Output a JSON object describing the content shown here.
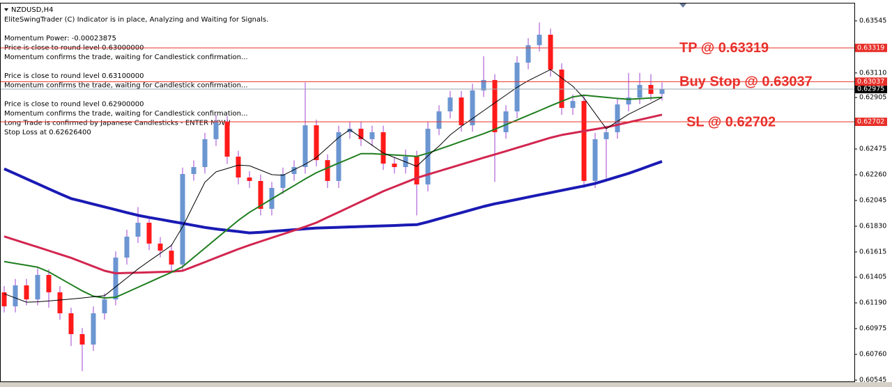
{
  "chart_data": {
    "type": "candlestick",
    "symbol": "NZDUSD,H4",
    "info_blocks": [
      [
        "EliteSwingTrader (C) Indicator is in place, Analyzing and Waiting for Signals."
      ],
      [
        "Momentum Power: -0.00023875",
        "Price is close to round level 0.63000000",
        "Momentum confirms the trade, waiting for Candlestick confirmation..."
      ],
      [
        "Price is close to round level 0.63100000",
        "Momentum confirms the trade, waiting for Candlestick confirmation..."
      ],
      [
        "Price is close to round level 0.62900000",
        "Momentum confirms the trade, waiting for Candlestick confirmation...",
        "Long Trade is confirmed by Japanese Candlesticks - ENTER NOW!",
        "Stop Loss at 0.62626400"
      ]
    ],
    "open": [
      0.61278,
      0.61161,
      0.61336,
      0.61219,
      0.61423,
      0.61278,
      0.61103,
      0.60929,
      0.60842,
      0.61103,
      0.61219,
      0.61568,
      0.61743,
      0.61859,
      0.61685,
      0.61626,
      0.6151,
      0.62266,
      0.62324,
      0.62557,
      0.62702,
      0.62411,
      0.62237,
      0.62208,
      0.61975,
      0.6215,
      0.62266,
      0.62324,
      0.62673,
      0.62382,
      0.62208,
      0.62615,
      0.62644,
      0.62557,
      0.62615,
      0.62353,
      0.62324,
      0.62411,
      0.62179,
      0.62644,
      0.62789,
      0.62905,
      0.62673,
      0.62964,
      0.63051,
      0.62615,
      0.62789,
      0.63196,
      0.63342,
      0.63429,
      0.63138,
      0.62818,
      0.62876,
      0.62208,
      0.62557,
      0.62615,
      0.62847,
      0.62905,
      0.6301,
      0.62935
    ],
    "high": [
      0.6133,
      0.6139,
      0.6139,
      0.6148,
      0.6147,
      0.6133,
      0.6115,
      0.6098,
      0.6116,
      0.6127,
      0.6162,
      0.618,
      0.6199,
      0.6191,
      0.6174,
      0.6168,
      0.6232,
      0.6238,
      0.6261,
      0.6276,
      0.6275,
      0.6246,
      0.6229,
      0.6226,
      0.622,
      0.6232,
      0.6238,
      0.6303,
      0.6272,
      0.6243,
      0.6267,
      0.627,
      0.627,
      0.6267,
      0.6267,
      0.6241,
      0.6247,
      0.6246,
      0.627,
      0.6284,
      0.6296,
      0.6296,
      0.6302,
      0.6325,
      0.631,
      0.6284,
      0.6325,
      0.634,
      0.6353,
      0.6348,
      0.6319,
      0.6293,
      0.6293,
      0.6261,
      0.6267,
      0.629,
      0.6311,
      0.6311,
      0.631,
      0.6303
    ],
    "low": [
      0.6111,
      0.6111,
      0.6117,
      0.6117,
      0.6115,
      0.6105,
      0.6083,
      0.6062,
      0.6079,
      0.6105,
      0.6117,
      0.6151,
      0.6169,
      0.6163,
      0.6157,
      0.6145,
      0.6146,
      0.6221,
      0.6227,
      0.625,
      0.6235,
      0.6218,
      0.6215,
      0.6192,
      0.6192,
      0.621,
      0.6221,
      0.6227,
      0.6233,
      0.6215,
      0.6215,
      0.6256,
      0.625,
      0.625,
      0.623,
      0.6227,
      0.6227,
      0.6192,
      0.6212,
      0.6259,
      0.6273,
      0.6262,
      0.6262,
      0.6291,
      0.622,
      0.6256,
      0.6273,
      0.6314,
      0.6329,
      0.6308,
      0.6276,
      0.6276,
      0.6215,
      0.6215,
      0.6223,
      0.6256,
      0.6279,
      0.6285,
      0.6288,
      0.6288
    ],
    "close": [
      0.61161,
      0.61336,
      0.61219,
      0.61423,
      0.61278,
      0.61103,
      0.60929,
      0.60842,
      0.61103,
      0.61219,
      0.61568,
      0.61743,
      0.61859,
      0.61685,
      0.61626,
      0.6151,
      0.62266,
      0.62324,
      0.62557,
      0.62702,
      0.62411,
      0.62237,
      0.62208,
      0.61975,
      0.6215,
      0.62266,
      0.62324,
      0.62673,
      0.62382,
      0.62208,
      0.62615,
      0.62644,
      0.62557,
      0.62615,
      0.62353,
      0.62324,
      0.62411,
      0.62179,
      0.62644,
      0.62789,
      0.62905,
      0.62673,
      0.62964,
      0.63051,
      0.62615,
      0.62789,
      0.63196,
      0.63342,
      0.63429,
      0.63138,
      0.62818,
      0.62876,
      0.62208,
      0.62557,
      0.62615,
      0.62847,
      0.62905,
      0.6301,
      0.62935,
      0.62975
    ],
    "up_color": "#6b96d2",
    "down_color": "#ff1a1a",
    "wick_color": "#a040d0",
    "series": [
      {
        "color": "#1a1ab4",
        "width": 4,
        "values": [
          0.62309,
          0.62268,
          0.62226,
          0.62184,
          0.62142,
          0.62101,
          0.62061,
          0.62038,
          0.62014,
          0.61991,
          0.61968,
          0.61944,
          0.61921,
          0.61903,
          0.61887,
          0.6187,
          0.61854,
          0.61837,
          0.6182,
          0.61807,
          0.61796,
          0.61786,
          0.61774,
          0.61779,
          0.61787,
          0.61794,
          0.61801,
          0.61808,
          0.61815,
          0.61818,
          0.61821,
          0.61824,
          0.61827,
          0.6183,
          0.61833,
          0.61836,
          0.6184,
          0.61843,
          0.61866,
          0.61892,
          0.61918,
          0.61943,
          0.61969,
          0.61995,
          0.62017,
          0.62035,
          0.62054,
          0.62073,
          0.62092,
          0.6211,
          0.62129,
          0.62148,
          0.62166,
          0.62187,
          0.62215,
          0.62243,
          0.62271,
          0.62304,
          0.62338,
          0.62371
        ]
      },
      {
        "color": "#d2264f",
        "width": 3,
        "values": [
          0.61745,
          0.61715,
          0.61685,
          0.61656,
          0.61626,
          0.61596,
          0.61566,
          0.6153,
          0.61494,
          0.61458,
          0.61437,
          0.6144,
          0.61442,
          0.61445,
          0.61448,
          0.61451,
          0.61458,
          0.61494,
          0.6153,
          0.61567,
          0.61603,
          0.61639,
          0.61672,
          0.61703,
          0.61734,
          0.61764,
          0.61795,
          0.61826,
          0.6186,
          0.61904,
          0.61947,
          0.61991,
          0.62035,
          0.62078,
          0.62122,
          0.62159,
          0.62196,
          0.62233,
          0.62262,
          0.6229,
          0.62318,
          0.62346,
          0.62374,
          0.62402,
          0.62429,
          0.62457,
          0.62485,
          0.62513,
          0.62541,
          0.62569,
          0.62592,
          0.62608,
          0.62624,
          0.6264,
          0.62656,
          0.62677,
          0.62698,
          0.62719,
          0.6274,
          0.62761
        ]
      },
      {
        "color": "#1e7d1e",
        "width": 2,
        "values": [
          0.61535,
          0.61519,
          0.61504,
          0.61488,
          0.61449,
          0.61396,
          0.61343,
          0.6129,
          0.61246,
          0.61231,
          0.61237,
          0.61278,
          0.6132,
          0.61362,
          0.61404,
          0.61445,
          0.61492,
          0.6157,
          0.61647,
          0.61725,
          0.61802,
          0.61879,
          0.61946,
          0.62002,
          0.62058,
          0.62114,
          0.62169,
          0.62225,
          0.62277,
          0.62317,
          0.62357,
          0.62396,
          0.62436,
          0.62436,
          0.6243,
          0.62425,
          0.62419,
          0.62413,
          0.6244,
          0.62473,
          0.62505,
          0.62538,
          0.6257,
          0.62603,
          0.62639,
          0.62678,
          0.62717,
          0.62756,
          0.62795,
          0.62835,
          0.62873,
          0.6291,
          0.62924,
          0.62915,
          0.62906,
          0.62897,
          0.6289,
          0.62895,
          0.62901,
          0.62906
        ]
      },
      {
        "color": "#000000",
        "width": 1,
        "values": [
          0.61266,
          0.61231,
          0.61196,
          0.61199,
          0.61206,
          0.61214,
          0.61222,
          0.61231,
          0.61241,
          0.6125,
          0.61324,
          0.61398,
          0.61473,
          0.61539,
          0.61604,
          0.6167,
          0.61825,
          0.62011,
          0.62197,
          0.62284,
          0.62312,
          0.6234,
          0.62335,
          0.62298,
          0.62261,
          0.62255,
          0.62302,
          0.62348,
          0.62404,
          0.62487,
          0.62571,
          0.62636,
          0.62571,
          0.62506,
          0.62441,
          0.62404,
          0.62367,
          0.6233,
          0.62418,
          0.62499,
          0.62592,
          0.62664,
          0.62729,
          0.62795,
          0.6286,
          0.62925,
          0.6299,
          0.63045,
          0.63092,
          0.63138,
          0.63068,
          0.62999,
          0.629,
          0.62772,
          0.62644,
          0.62706,
          0.62765,
          0.62811,
          0.62858,
          0.62906
        ]
      }
    ],
    "levels": [
      {
        "label": "TP @ 0.63319",
        "value": 0.63319,
        "color": "#e8302a"
      },
      {
        "label": "Buy Stop @ 0.63037",
        "value": 0.63037,
        "color": "#e8302a"
      },
      {
        "label": "SL @ 0.62702",
        "value": 0.62702,
        "color": "#e8302a"
      }
    ],
    "bid": {
      "value": 0.62975,
      "color": "#9aa6ac"
    },
    "ylim": [
      0.60534,
      0.6369
    ],
    "yticks": [
      0.63545,
      {
        "value": 0.6311,
        "label": "0.63110"
      },
      0.62905,
      0.62475,
      {
        "value": 0.6226,
        "label": "0.62260"
      },
      0.62045,
      {
        "value": 0.6183,
        "label": "0.61830"
      },
      0.61615,
      0.61405,
      {
        "value": 0.6119,
        "label": "0.61190"
      },
      0.60975,
      {
        "value": 0.6076,
        "label": "0.60760"
      },
      0.60545
    ]
  }
}
